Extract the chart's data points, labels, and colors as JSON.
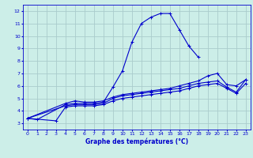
{
  "xlabel": "Graphe des températures (°C)",
  "background_color": "#cceee8",
  "grid_color": "#aacccc",
  "line_color": "#0000cc",
  "xlim": [
    -0.5,
    23.5
  ],
  "ylim": [
    2.5,
    12.5
  ],
  "xticks": [
    0,
    1,
    2,
    3,
    4,
    5,
    6,
    7,
    8,
    9,
    10,
    11,
    12,
    13,
    14,
    15,
    16,
    17,
    18,
    19,
    20,
    21,
    22,
    23
  ],
  "yticks": [
    3,
    4,
    5,
    6,
    7,
    8,
    9,
    10,
    11,
    12
  ],
  "series": [
    {
      "x": [
        0,
        1,
        4,
        5,
        6,
        7,
        8,
        9,
        10,
        11,
        12,
        13,
        14,
        15,
        16,
        17,
        18
      ],
      "y": [
        3.4,
        3.3,
        4.5,
        4.6,
        4.6,
        4.6,
        4.7,
        5.9,
        7.2,
        9.5,
        11.0,
        11.5,
        11.8,
        11.8,
        10.5,
        9.2,
        8.3
      ]
    },
    {
      "x": [
        0,
        4,
        5,
        6,
        7,
        8,
        9,
        10,
        11,
        12,
        13,
        14,
        15,
        16,
        17,
        18,
        19,
        20,
        21,
        22,
        23
      ],
      "y": [
        3.4,
        4.4,
        4.5,
        4.5,
        4.5,
        4.6,
        5.0,
        5.2,
        5.3,
        5.4,
        5.5,
        5.6,
        5.7,
        5.8,
        6.0,
        6.2,
        6.3,
        6.4,
        5.9,
        5.5,
        6.5
      ]
    },
    {
      "x": [
        0,
        4,
        5,
        6,
        7,
        8,
        9,
        10,
        11,
        12,
        13,
        14,
        15,
        16,
        17,
        18,
        19,
        20,
        21,
        22,
        23
      ],
      "y": [
        3.4,
        4.6,
        4.8,
        4.7,
        4.7,
        4.8,
        5.1,
        5.3,
        5.4,
        5.5,
        5.6,
        5.7,
        5.8,
        6.0,
        6.2,
        6.4,
        6.8,
        7.0,
        6.1,
        6.0,
        6.5
      ]
    },
    {
      "x": [
        0,
        3,
        4,
        5,
        6,
        7,
        8,
        9,
        10,
        11,
        12,
        13,
        14,
        15,
        16,
        17,
        18,
        19,
        20,
        21,
        22,
        23
      ],
      "y": [
        3.4,
        3.2,
        4.3,
        4.4,
        4.4,
        4.4,
        4.5,
        4.8,
        5.0,
        5.1,
        5.2,
        5.3,
        5.4,
        5.5,
        5.6,
        5.8,
        6.0,
        6.1,
        6.2,
        5.8,
        5.4,
        6.2
      ]
    }
  ]
}
